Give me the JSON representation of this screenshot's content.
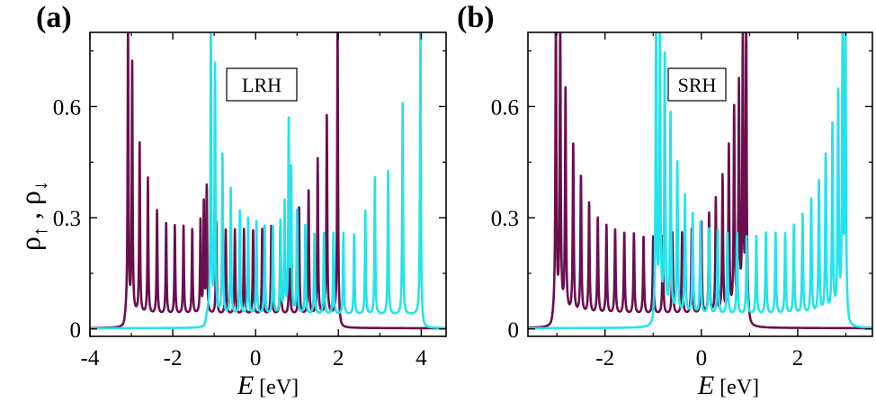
{
  "figure": {
    "ylabel_main": "ρ",
    "ylabel_up": "↑",
    "ylabel_sep": " , ",
    "ylabel_down": "↓"
  },
  "chart_data": [
    {
      "type": "line",
      "panel_label": "(a)",
      "annotation": "LRH",
      "xlabel": "E",
      "xunit": "[eV]",
      "xlim": [
        -4.0,
        4.6
      ],
      "ylim": [
        -0.02,
        0.8
      ],
      "xticks": [
        -4,
        -2,
        0,
        2,
        4
      ],
      "xtick_labels": [
        "-4",
        "-2",
        "0",
        "2",
        "4"
      ],
      "yticks": [
        0,
        0.3,
        0.6
      ],
      "ytick_labels": [
        "0",
        "0.3",
        "0.6"
      ],
      "show_ytick_labels": true,
      "series": [
        {
          "name": "spin-up",
          "color": "#6b0f4e",
          "band": [
            -3.15,
            2.02
          ],
          "peaks": [
            {
              "x": -3.08,
              "h": 0.8
            },
            {
              "x": -2.98,
              "h": 0.7
            },
            {
              "x": -2.8,
              "h": 0.48
            },
            {
              "x": -2.6,
              "h": 0.39
            },
            {
              "x": -2.38,
              "h": 0.3
            },
            {
              "x": -2.16,
              "h": 0.27
            },
            {
              "x": -1.95,
              "h": 0.26
            },
            {
              "x": -1.74,
              "h": 0.26
            },
            {
              "x": -1.53,
              "h": 0.25
            },
            {
              "x": -1.33,
              "h": 0.27
            },
            {
              "x": -1.25,
              "h": 0.32
            },
            {
              "x": -1.18,
              "h": 0.36
            },
            {
              "x": -0.95,
              "h": 0.27
            },
            {
              "x": -0.72,
              "h": 0.25
            },
            {
              "x": -0.5,
              "h": 0.25
            },
            {
              "x": -0.28,
              "h": 0.25
            },
            {
              "x": -0.06,
              "h": 0.25
            },
            {
              "x": 0.16,
              "h": 0.25
            },
            {
              "x": 0.38,
              "h": 0.26
            },
            {
              "x": 0.6,
              "h": 0.26
            },
            {
              "x": 0.82,
              "h": 0.28
            },
            {
              "x": 1.05,
              "h": 0.31
            },
            {
              "x": 1.28,
              "h": 0.36
            },
            {
              "x": 1.5,
              "h": 0.44
            },
            {
              "x": 1.72,
              "h": 0.56
            },
            {
              "x": 1.98,
              "h": 0.8
            }
          ]
        },
        {
          "name": "spin-down",
          "color": "#22e4ea",
          "band": [
            -1.2,
            4.02
          ],
          "peaks": [
            {
              "x": -1.08,
              "h": 0.8
            },
            {
              "x": -0.98,
              "h": 0.69
            },
            {
              "x": -0.8,
              "h": 0.45
            },
            {
              "x": -0.6,
              "h": 0.36
            },
            {
              "x": -0.38,
              "h": 0.3
            },
            {
              "x": -0.18,
              "h": 0.28
            },
            {
              "x": 0.02,
              "h": 0.27
            },
            {
              "x": 0.22,
              "h": 0.26
            },
            {
              "x": 0.42,
              "h": 0.26
            },
            {
              "x": 0.6,
              "h": 0.27
            },
            {
              "x": 0.7,
              "h": 0.32
            },
            {
              "x": 0.8,
              "h": 0.54
            },
            {
              "x": 0.86,
              "h": 0.4
            },
            {
              "x": 1.0,
              "h": 0.3
            },
            {
              "x": 1.2,
              "h": 0.26
            },
            {
              "x": 1.42,
              "h": 0.24
            },
            {
              "x": 1.65,
              "h": 0.24
            },
            {
              "x": 1.88,
              "h": 0.24
            },
            {
              "x": 2.12,
              "h": 0.24
            },
            {
              "x": 2.38,
              "h": 0.24
            },
            {
              "x": 2.65,
              "h": 0.3
            },
            {
              "x": 2.88,
              "h": 0.39
            },
            {
              "x": 3.2,
              "h": 0.41
            },
            {
              "x": 3.55,
              "h": 0.59
            },
            {
              "x": 3.98,
              "h": 0.8
            }
          ]
        }
      ]
    },
    {
      "type": "line",
      "panel_label": "(b)",
      "annotation": "SRH",
      "xlabel": "E",
      "xunit": "[eV]",
      "xlim": [
        -3.6,
        3.55
      ],
      "ylim": [
        -0.02,
        0.8
      ],
      "xticks": [
        -2,
        0,
        2
      ],
      "xtick_labels": [
        "-2",
        "0",
        "2"
      ],
      "yticks": [
        0,
        0.3,
        0.6
      ],
      "ytick_labels": [
        "0",
        "0.3",
        "0.6"
      ],
      "show_ytick_labels": true,
      "series": [
        {
          "name": "spin-up",
          "color": "#6b0f4e",
          "band": [
            -3.08,
            0.98
          ],
          "peaks": [
            {
              "x": -3.02,
              "h": 0.8
            },
            {
              "x": -2.93,
              "h": 0.8
            },
            {
              "x": -2.82,
              "h": 0.62
            },
            {
              "x": -2.66,
              "h": 0.48
            },
            {
              "x": -2.5,
              "h": 0.39
            },
            {
              "x": -2.33,
              "h": 0.32
            },
            {
              "x": -2.15,
              "h": 0.28
            },
            {
              "x": -1.97,
              "h": 0.26
            },
            {
              "x": -1.79,
              "h": 0.25
            },
            {
              "x": -1.6,
              "h": 0.24
            },
            {
              "x": -1.4,
              "h": 0.24
            },
            {
              "x": -1.2,
              "h": 0.23
            },
            {
              "x": -1.0,
              "h": 0.23
            },
            {
              "x": -0.8,
              "h": 0.23
            },
            {
              "x": -0.6,
              "h": 0.24
            },
            {
              "x": -0.4,
              "h": 0.24
            },
            {
              "x": -0.2,
              "h": 0.25
            },
            {
              "x": 0.0,
              "h": 0.27
            },
            {
              "x": 0.16,
              "h": 0.29
            },
            {
              "x": 0.3,
              "h": 0.33
            },
            {
              "x": 0.44,
              "h": 0.39
            },
            {
              "x": 0.57,
              "h": 0.47
            },
            {
              "x": 0.68,
              "h": 0.57
            },
            {
              "x": 0.78,
              "h": 0.63
            },
            {
              "x": 0.86,
              "h": 0.75
            },
            {
              "x": 0.93,
              "h": 0.8
            }
          ]
        },
        {
          "name": "spin-down",
          "color": "#22e4ea",
          "band": [
            -0.98,
            3.02
          ],
          "peaks": [
            {
              "x": -0.94,
              "h": 0.8
            },
            {
              "x": -0.86,
              "h": 0.8
            },
            {
              "x": -0.76,
              "h": 0.71
            },
            {
              "x": -0.64,
              "h": 0.56
            },
            {
              "x": -0.5,
              "h": 0.43
            },
            {
              "x": -0.34,
              "h": 0.34
            },
            {
              "x": -0.18,
              "h": 0.29
            },
            {
              "x": -0.02,
              "h": 0.27
            },
            {
              "x": 0.16,
              "h": 0.25
            },
            {
              "x": 0.34,
              "h": 0.25
            },
            {
              "x": 0.54,
              "h": 0.24
            },
            {
              "x": 0.74,
              "h": 0.24
            },
            {
              "x": 0.94,
              "h": 0.23
            },
            {
              "x": 1.14,
              "h": 0.23
            },
            {
              "x": 1.34,
              "h": 0.24
            },
            {
              "x": 1.54,
              "h": 0.24
            },
            {
              "x": 1.74,
              "h": 0.24
            },
            {
              "x": 1.92,
              "h": 0.26
            },
            {
              "x": 2.1,
              "h": 0.29
            },
            {
              "x": 2.28,
              "h": 0.33
            },
            {
              "x": 2.44,
              "h": 0.38
            },
            {
              "x": 2.58,
              "h": 0.45
            },
            {
              "x": 2.72,
              "h": 0.53
            },
            {
              "x": 2.84,
              "h": 0.61
            },
            {
              "x": 2.93,
              "h": 0.77
            },
            {
              "x": 2.99,
              "h": 0.8
            }
          ]
        }
      ]
    }
  ]
}
